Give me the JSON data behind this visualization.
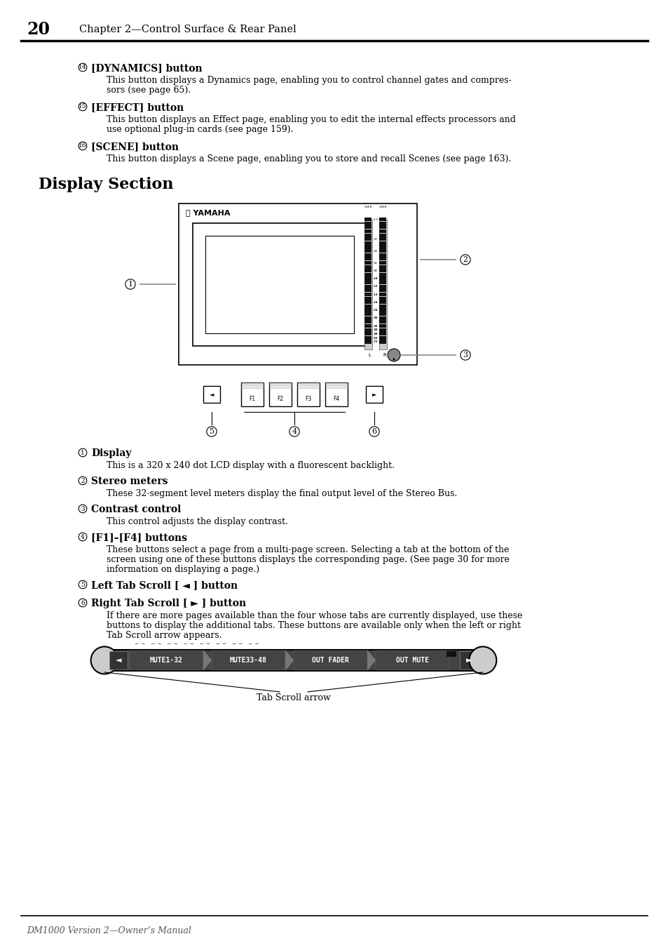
{
  "page_number": "20",
  "header_title": "Chapter 2—Control Surface & Rear Panel",
  "footer_text": "DM1000 Version 2—Owner’s Manual",
  "bg_color": "#ffffff",
  "sections": [
    {
      "number": "(14)",
      "title": "[DYNAMICS] button",
      "body": "This button displays a Dynamics page, enabling you to control channel gates and compres-\nsors (see page 65)."
    },
    {
      "number": "(15)",
      "title": "[EFFECT] button",
      "body": "This button displays an Effect page, enabling you to edit the internal effects processors and\nuse optional plug-in cards (see page 159)."
    },
    {
      "number": "(16)",
      "title": "[SCENE] button",
      "body": "This button displays a Scene page, enabling you to store and recall Scenes (see page 163)."
    }
  ],
  "display_section_title": "Display Section",
  "display_items": [
    {
      "number": "(1)",
      "title": "Display",
      "body": "This is a 320 x 240 dot LCD display with a fluorescent backlight."
    },
    {
      "number": "(2)",
      "title": "Stereo meters",
      "body": "These 32-segment level meters display the final output level of the Stereo Bus."
    },
    {
      "number": "(3)",
      "title": "Contrast control",
      "body": "This control adjusts the display contrast."
    },
    {
      "number": "(4)",
      "title": "[F1]–[F4] buttons",
      "body": "These buttons select a page from a multi-page screen. Selecting a tab at the bottom of the\nscreen using one of these buttons displays the corresponding page. (See page 30 for more\ninformation on displaying a page.)"
    },
    {
      "number": "(5)",
      "title": "Left Tab Scroll [ ◄ ] button",
      "body": null
    },
    {
      "number": "(6)",
      "title": "Right Tab Scroll [ ► ] button",
      "body": "If there are more pages available than the four whose tabs are currently displayed, use these\nbuttons to display the additional tabs. These buttons are available only when the left or right\nTab Scroll arrow appears."
    }
  ],
  "tab_labels": [
    "MUTE1-32",
    "MUTE33-48",
    "OUT FADER",
    "OUT MUTE"
  ],
  "tab_scroll_label": "Tab Scroll arrow"
}
